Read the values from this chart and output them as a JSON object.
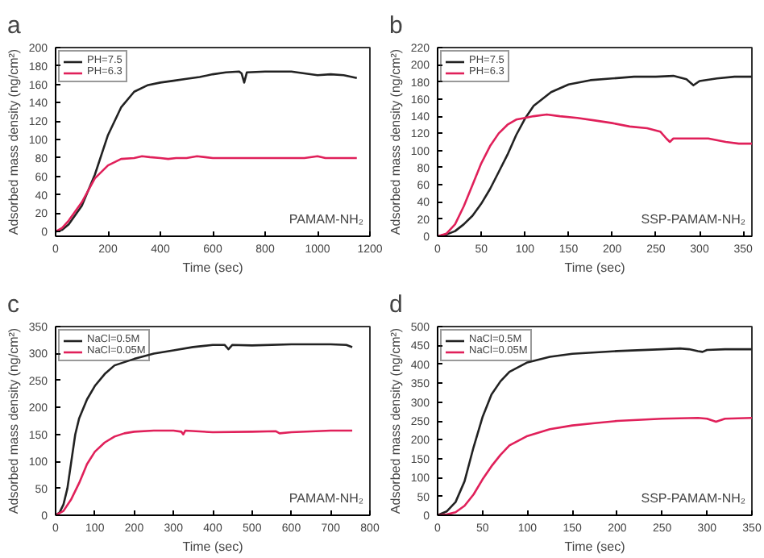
{
  "chart_data": [
    {
      "type": "line",
      "title": "a",
      "xlabel": "Time (sec)",
      "ylabel": "Adsorbed mass density (ng/cm²)",
      "annotations": [
        "PAMAM-NH₂"
      ],
      "legend": "top left",
      "grid": false,
      "xlim": [
        0,
        1200
      ],
      "ylim": [
        -5,
        200
      ],
      "xticks": [
        0,
        200,
        400,
        600,
        800,
        1000,
        1200
      ],
      "yticks": [
        0,
        20,
        40,
        60,
        80,
        100,
        120,
        140,
        160,
        180,
        200
      ],
      "series": [
        {
          "name": "PH=7.5",
          "color": "#222222",
          "x": [
            0,
            25,
            50,
            100,
            150,
            200,
            250,
            300,
            350,
            400,
            450,
            500,
            550,
            600,
            650,
            700,
            710,
            720,
            730,
            800,
            900,
            950,
            1000,
            1050,
            1100,
            1150
          ],
          "values": [
            0,
            2,
            8,
            28,
            62,
            105,
            135,
            152,
            159,
            162,
            164,
            166,
            168,
            171,
            173,
            174,
            172,
            162,
            173,
            174,
            174,
            172,
            170,
            171,
            170,
            167
          ]
        },
        {
          "name": "PH=6.3",
          "color": "#e0205a",
          "x": [
            0,
            25,
            50,
            100,
            150,
            200,
            250,
            300,
            330,
            360,
            400,
            430,
            460,
            500,
            540,
            570,
            600,
            800,
            950,
            1000,
            1030,
            1150
          ],
          "values": [
            0,
            4,
            12,
            32,
            58,
            72,
            79,
            80,
            82,
            81,
            80,
            79,
            80,
            80,
            82,
            81,
            80,
            80,
            80,
            82,
            80,
            80
          ]
        }
      ]
    },
    {
      "type": "line",
      "title": "b",
      "xlabel": "Time (sec)",
      "ylabel": "Adsorbed mass density (ng/cm²)",
      "annotations": [
        "SSP-PAMAM-NH₂"
      ],
      "legend": "top left",
      "grid": false,
      "xlim": [
        0,
        360
      ],
      "ylim": [
        0,
        220
      ],
      "xticks": [
        0,
        50,
        100,
        150,
        200,
        250,
        300,
        350
      ],
      "yticks": [
        0,
        20,
        40,
        60,
        80,
        100,
        120,
        140,
        160,
        180,
        200,
        220
      ],
      "series": [
        {
          "name": "PH=7.5",
          "color": "#222222",
          "x": [
            0,
            10,
            20,
            30,
            40,
            50,
            60,
            70,
            80,
            90,
            100,
            110,
            120,
            130,
            150,
            175,
            200,
            225,
            250,
            270,
            285,
            293,
            300,
            320,
            340,
            360
          ],
          "values": [
            0,
            2,
            6,
            14,
            24,
            38,
            55,
            75,
            95,
            118,
            137,
            152,
            160,
            168,
            177,
            182,
            184,
            186,
            186,
            187,
            183,
            176,
            181,
            184,
            186,
            186
          ]
        },
        {
          "name": "PH=6.3",
          "color": "#e0205a",
          "x": [
            0,
            10,
            20,
            30,
            40,
            50,
            60,
            70,
            80,
            90,
            100,
            110,
            125,
            140,
            160,
            180,
            200,
            220,
            240,
            255,
            262,
            266,
            270,
            290,
            310,
            330,
            345,
            360
          ],
          "values": [
            0,
            3,
            14,
            35,
            60,
            85,
            105,
            120,
            130,
            136,
            138,
            140,
            142,
            140,
            138,
            135,
            132,
            128,
            126,
            122,
            114,
            110,
            114,
            114,
            114,
            110,
            108,
            108
          ]
        }
      ]
    },
    {
      "type": "line",
      "title": "c",
      "xlabel": "Time (sec)",
      "ylabel": "Adsorbed mass density (ng/cm²)",
      "annotations": [
        "PAMAM-NH₂"
      ],
      "legend": "top left",
      "grid": false,
      "xlim": [
        0,
        800
      ],
      "ylim": [
        0,
        350
      ],
      "xticks": [
        0,
        100,
        200,
        300,
        400,
        500,
        600,
        700,
        800
      ],
      "yticks": [
        0,
        50,
        100,
        150,
        200,
        250,
        300,
        350
      ],
      "series": [
        {
          "name": "NaCl=0.5M",
          "color": "#222222",
          "x": [
            0,
            10,
            20,
            30,
            40,
            50,
            60,
            80,
            100,
            125,
            150,
            200,
            250,
            300,
            350,
            400,
            430,
            440,
            450,
            500,
            600,
            700,
            740,
            755
          ],
          "values": [
            0,
            5,
            20,
            50,
            100,
            150,
            180,
            215,
            240,
            262,
            278,
            290,
            300,
            306,
            312,
            316,
            316,
            308,
            316,
            315,
            317,
            317,
            316,
            312
          ]
        },
        {
          "name": "NaCl=0.05M",
          "color": "#e0205a",
          "x": [
            0,
            20,
            40,
            60,
            80,
            100,
            125,
            150,
            175,
            200,
            250,
            300,
            320,
            325,
            330,
            400,
            500,
            560,
            570,
            600,
            700,
            755
          ],
          "values": [
            0,
            8,
            30,
            60,
            95,
            118,
            135,
            146,
            152,
            155,
            157,
            157,
            155,
            150,
            157,
            154,
            155,
            156,
            152,
            154,
            157,
            157
          ]
        }
      ]
    },
    {
      "type": "line",
      "title": "d",
      "xlabel": "Time (sec)",
      "ylabel": "Adsorbed mass density (ng/cm²)",
      "annotations": [
        "SSP-PAMAM-NH₂"
      ],
      "legend": "top left",
      "grid": false,
      "xlim": [
        0,
        350
      ],
      "ylim": [
        0,
        500
      ],
      "xticks": [
        0,
        50,
        100,
        150,
        200,
        250,
        300,
        350
      ],
      "yticks": [
        0,
        50,
        100,
        150,
        200,
        250,
        300,
        350,
        400,
        450,
        500
      ],
      "series": [
        {
          "name": "NaCl=0.5M",
          "color": "#222222",
          "x": [
            0,
            10,
            20,
            30,
            40,
            50,
            60,
            70,
            80,
            100,
            125,
            150,
            200,
            250,
            270,
            280,
            290,
            295,
            300,
            320,
            350
          ],
          "values": [
            0,
            10,
            35,
            90,
            180,
            260,
            320,
            355,
            380,
            405,
            420,
            428,
            435,
            440,
            442,
            440,
            435,
            433,
            438,
            440,
            440
          ]
        },
        {
          "name": "NaCl=0.05M",
          "color": "#e0205a",
          "x": [
            0,
            10,
            20,
            30,
            40,
            50,
            60,
            70,
            80,
            100,
            125,
            150,
            175,
            200,
            250,
            290,
            300,
            310,
            320,
            350
          ],
          "values": [
            0,
            2,
            8,
            25,
            55,
            95,
            130,
            160,
            185,
            210,
            228,
            238,
            244,
            250,
            256,
            258,
            256,
            248,
            256,
            258
          ]
        }
      ]
    }
  ]
}
